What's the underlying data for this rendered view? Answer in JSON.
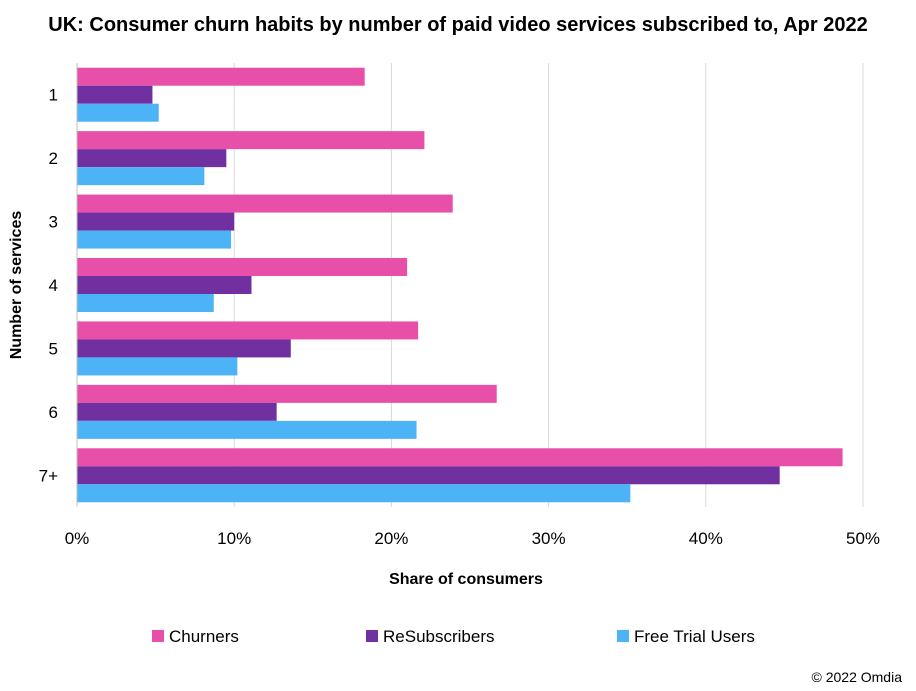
{
  "chart_data": {
    "type": "bar",
    "orientation": "horizontal",
    "title": "UK: Consumer churn habits by number of paid video services subscribed to, Apr 2022",
    "xlabel": "Share of consumers",
    "ylabel": "Number of services",
    "categories": [
      "1",
      "2",
      "3",
      "4",
      "5",
      "6",
      "7+"
    ],
    "series": [
      {
        "name": "Churners",
        "color": "#e84fa9",
        "values": [
          18.3,
          22.1,
          23.9,
          21.0,
          21.7,
          26.7,
          48.7
        ]
      },
      {
        "name": "ReSubscribers",
        "color": "#7030a0",
        "values": [
          4.8,
          9.5,
          10.0,
          11.1,
          13.6,
          12.7,
          44.7
        ]
      },
      {
        "name": "Free Trial Users",
        "color": "#4db3f7",
        "values": [
          5.2,
          8.1,
          9.8,
          8.7,
          10.2,
          21.6,
          35.2
        ]
      }
    ],
    "xlim": [
      0,
      50
    ],
    "xticks": [
      "0%",
      "10%",
      "20%",
      "30%",
      "40%",
      "50%"
    ],
    "grid": true,
    "legend": "bottom"
  },
  "credit": "© 2022 Omdia"
}
